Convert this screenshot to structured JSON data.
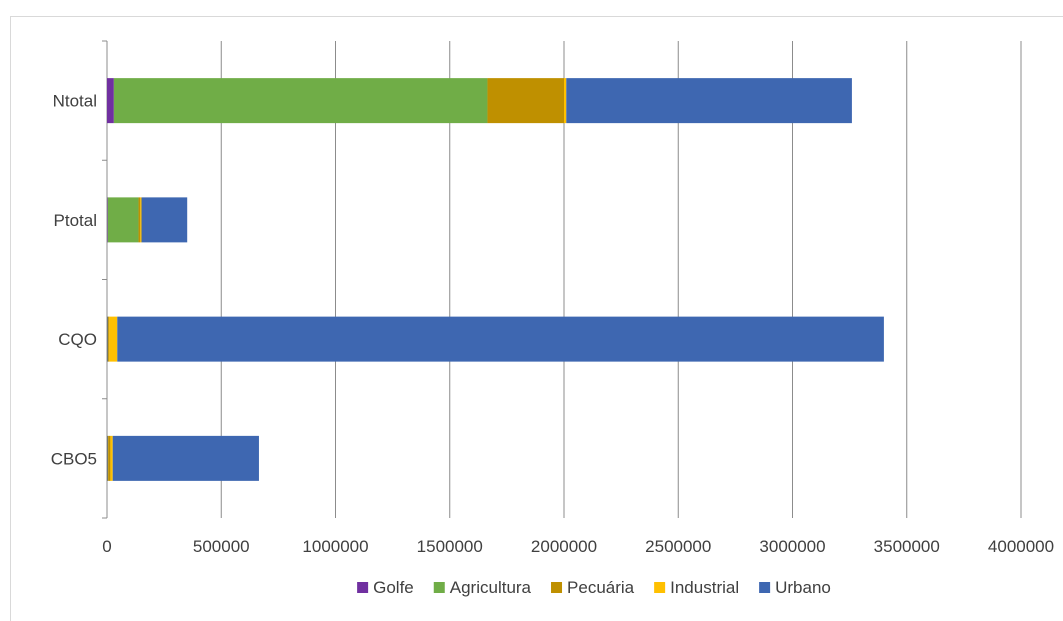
{
  "chart_data": {
    "type": "bar",
    "orientation": "horizontal",
    "stacked": true,
    "title": "",
    "xlabel": "",
    "ylabel": "",
    "categories": [
      "Ntotal",
      "Ptotal",
      "CQO",
      "CBO5"
    ],
    "xlim": [
      0,
      4000000
    ],
    "x_ticks": [
      0,
      500000,
      1000000,
      1500000,
      2000000,
      2500000,
      3000000,
      3500000,
      4000000
    ],
    "x_tick_labels": [
      "0",
      "500000",
      "1000000",
      "1500000",
      "2000000",
      "2500000",
      "3000000",
      "3500000",
      "4000000"
    ],
    "grid": "vertical",
    "legend_position": "bottom",
    "series": [
      {
        "name": "Golfe",
        "color": "#7030a0",
        "values": [
          30000,
          3000,
          2000,
          2000
        ]
      },
      {
        "name": "Agricultura",
        "color": "#70ad47",
        "values": [
          1635000,
          135000,
          3000,
          3000
        ]
      },
      {
        "name": "Pecuária",
        "color": "#bf9000",
        "values": [
          335000,
          8000,
          5000,
          10000
        ]
      },
      {
        "name": "Industrial",
        "color": "#ffc000",
        "values": [
          10000,
          5000,
          35000,
          10000
        ]
      },
      {
        "name": "Urbano",
        "color": "#3e67b1",
        "values": [
          1250000,
          200000,
          3355000,
          640000
        ]
      }
    ]
  }
}
